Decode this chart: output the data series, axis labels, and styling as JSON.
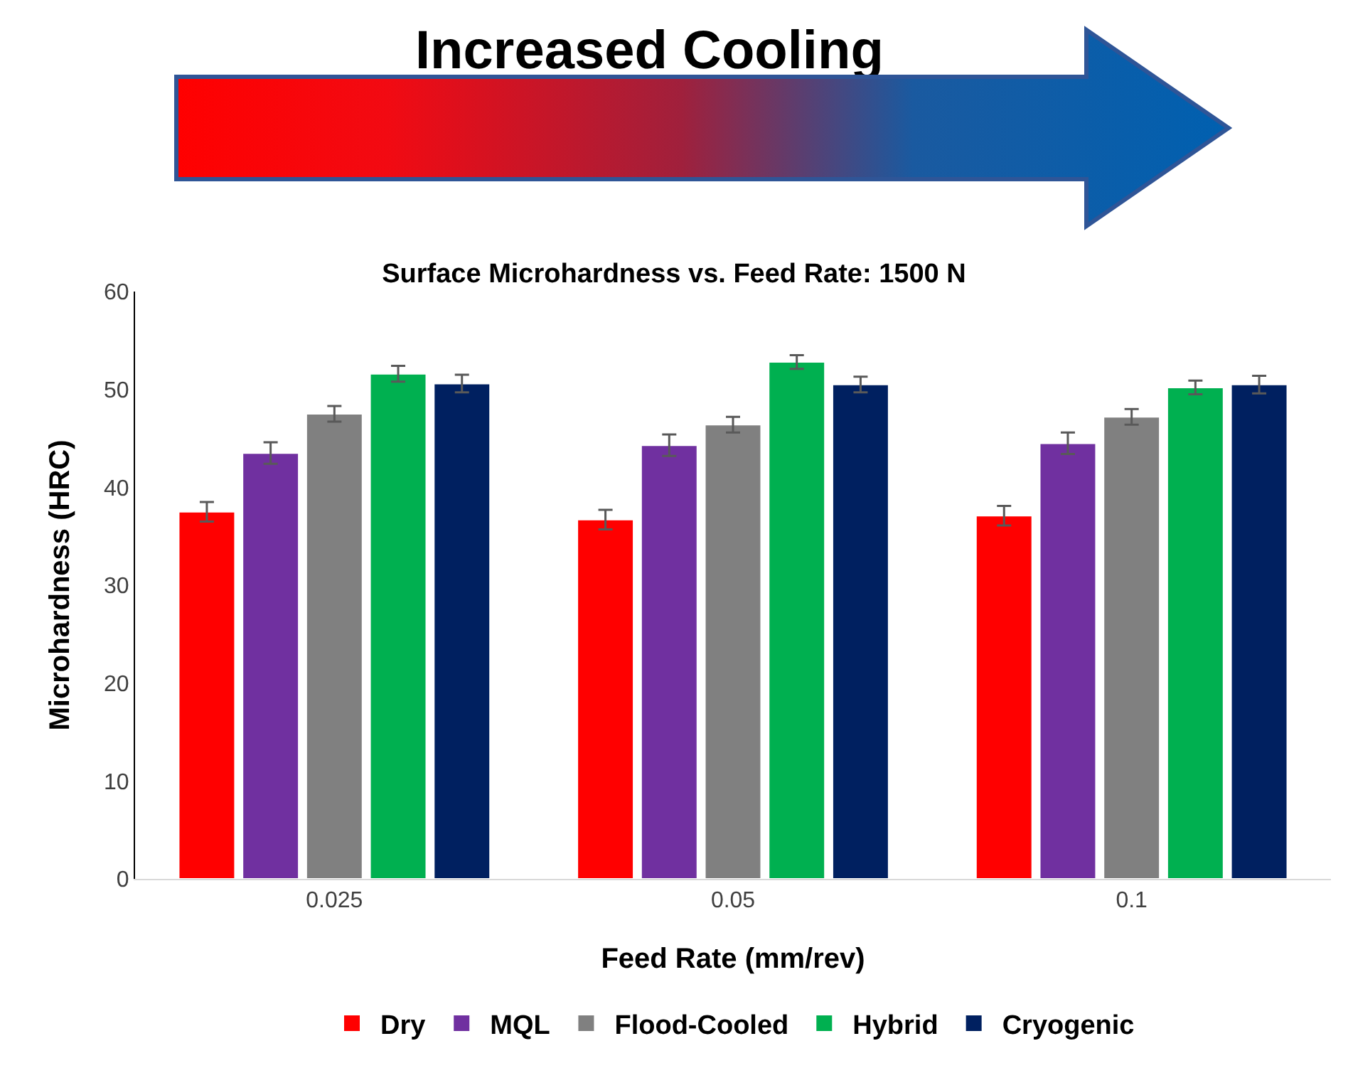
{
  "chart_data": {
    "type": "bar",
    "title": "Surface Microhardness vs. Feed Rate: 1500 N",
    "annotations": [
      "Increased Cooling"
    ],
    "xlabel": "Feed Rate (mm/rev)",
    "ylabel": "Microhardness (HRC)",
    "categories": [
      "0.025",
      "0.05",
      "0.1"
    ],
    "series": [
      {
        "name": "Dry",
        "color": "#ff0000",
        "values": [
          37.5,
          36.7,
          37.1
        ],
        "errors": [
          1.0,
          1.0,
          1.0
        ]
      },
      {
        "name": "MQL",
        "color": "#7030a0",
        "values": [
          43.5,
          44.3,
          44.5
        ],
        "errors": [
          1.1,
          1.1,
          1.1
        ]
      },
      {
        "name": "Flood-Cooled",
        "color": "#808080",
        "values": [
          47.5,
          46.4,
          47.2
        ],
        "errors": [
          0.8,
          0.8,
          0.8
        ]
      },
      {
        "name": "Hybrid",
        "color": "#00b050",
        "values": [
          51.6,
          52.8,
          50.2
        ],
        "errors": [
          0.8,
          0.7,
          0.7
        ]
      },
      {
        "name": "Cryogenic",
        "color": "#002060",
        "values": [
          50.6,
          50.5,
          50.5
        ],
        "errors": [
          0.9,
          0.8,
          0.9
        ]
      }
    ],
    "ylim": [
      0,
      60
    ],
    "yticks": [
      0,
      10,
      20,
      30,
      40,
      50,
      60
    ],
    "grid": false,
    "legend": "bottom"
  }
}
